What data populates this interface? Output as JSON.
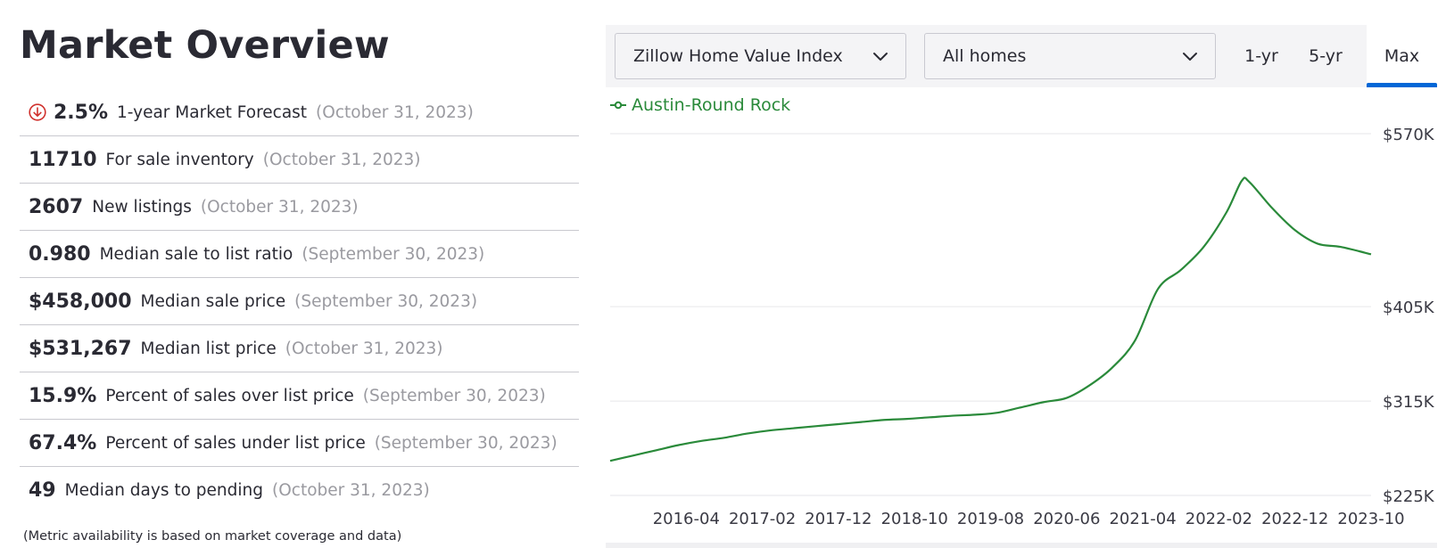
{
  "page_title": "Market Overview",
  "metrics": [
    {
      "value": "2.5%",
      "label": "1-year Market Forecast",
      "date": "(October 31, 2023)",
      "icon": "down-arrow-circle-icon"
    },
    {
      "value": "11710",
      "label": "For sale inventory",
      "date": "(October 31, 2023)"
    },
    {
      "value": "2607",
      "label": "New listings",
      "date": "(October 31, 2023)"
    },
    {
      "value": "0.980",
      "label": "Median sale to list ratio",
      "date": "(September 30, 2023)"
    },
    {
      "value": "$458,000",
      "label": "Median sale price",
      "date": "(September 30, 2023)"
    },
    {
      "value": "$531,267",
      "label": "Median list price",
      "date": "(October 31, 2023)"
    },
    {
      "value": "15.9%",
      "label": "Percent of sales over list price",
      "date": "(September 30, 2023)"
    },
    {
      "value": "67.4%",
      "label": "Percent of sales under list price",
      "date": "(September 30, 2023)"
    },
    {
      "value": "49",
      "label": "Median days to pending",
      "date": "(October 31, 2023)"
    }
  ],
  "footnote": "(Metric availability is based on market coverage and data)",
  "controls": {
    "index_select": "Zillow Home Value Index",
    "type_select": "All homes",
    "ranges": [
      "1-yr",
      "5-yr",
      "Max"
    ],
    "active_range": "Max"
  },
  "colors": {
    "line": "#2a8a3a",
    "forecast_down": "#d0312d",
    "active_tab": "#0066d6"
  },
  "chart_data": {
    "type": "line",
    "title": "",
    "series": [
      {
        "name": "Austin-Round Rock",
        "x": [
          "2015-06",
          "2015-09",
          "2015-12",
          "2016-03",
          "2016-06",
          "2016-09",
          "2016-12",
          "2017-03",
          "2017-06",
          "2017-09",
          "2017-12",
          "2018-03",
          "2018-06",
          "2018-09",
          "2018-12",
          "2019-03",
          "2019-06",
          "2019-09",
          "2019-12",
          "2020-03",
          "2020-06",
          "2020-09",
          "2020-12",
          "2021-03",
          "2021-06",
          "2021-09",
          "2021-12",
          "2022-03",
          "2022-05",
          "2022-06",
          "2022-09",
          "2022-12",
          "2023-03",
          "2023-06",
          "2023-10"
        ],
        "values": [
          258000,
          263000,
          268000,
          273000,
          277000,
          280000,
          284000,
          287000,
          289000,
          291000,
          293000,
          295000,
          297000,
          298000,
          299500,
          301000,
          302000,
          304000,
          309000,
          314000,
          318000,
          330000,
          347000,
          373000,
          422000,
          440000,
          462000,
          495000,
          525000,
          524000,
          499000,
          478000,
          465000,
          462000,
          455000
        ]
      }
    ],
    "xticks": [
      "2016-04",
      "2017-02",
      "2017-12",
      "2018-10",
      "2019-08",
      "2020-06",
      "2021-04",
      "2022-02",
      "2022-12",
      "2023-10"
    ],
    "yticks": [
      225000,
      315000,
      405000,
      570000
    ],
    "ytick_labels": [
      "$225K",
      "$315K",
      "$405K",
      "$570K"
    ],
    "ylim": [
      225000,
      570000
    ],
    "xlim": [
      "2015-06",
      "2023-10"
    ],
    "grid": true,
    "y_axis_side": "right",
    "legend_position": "top-left"
  }
}
